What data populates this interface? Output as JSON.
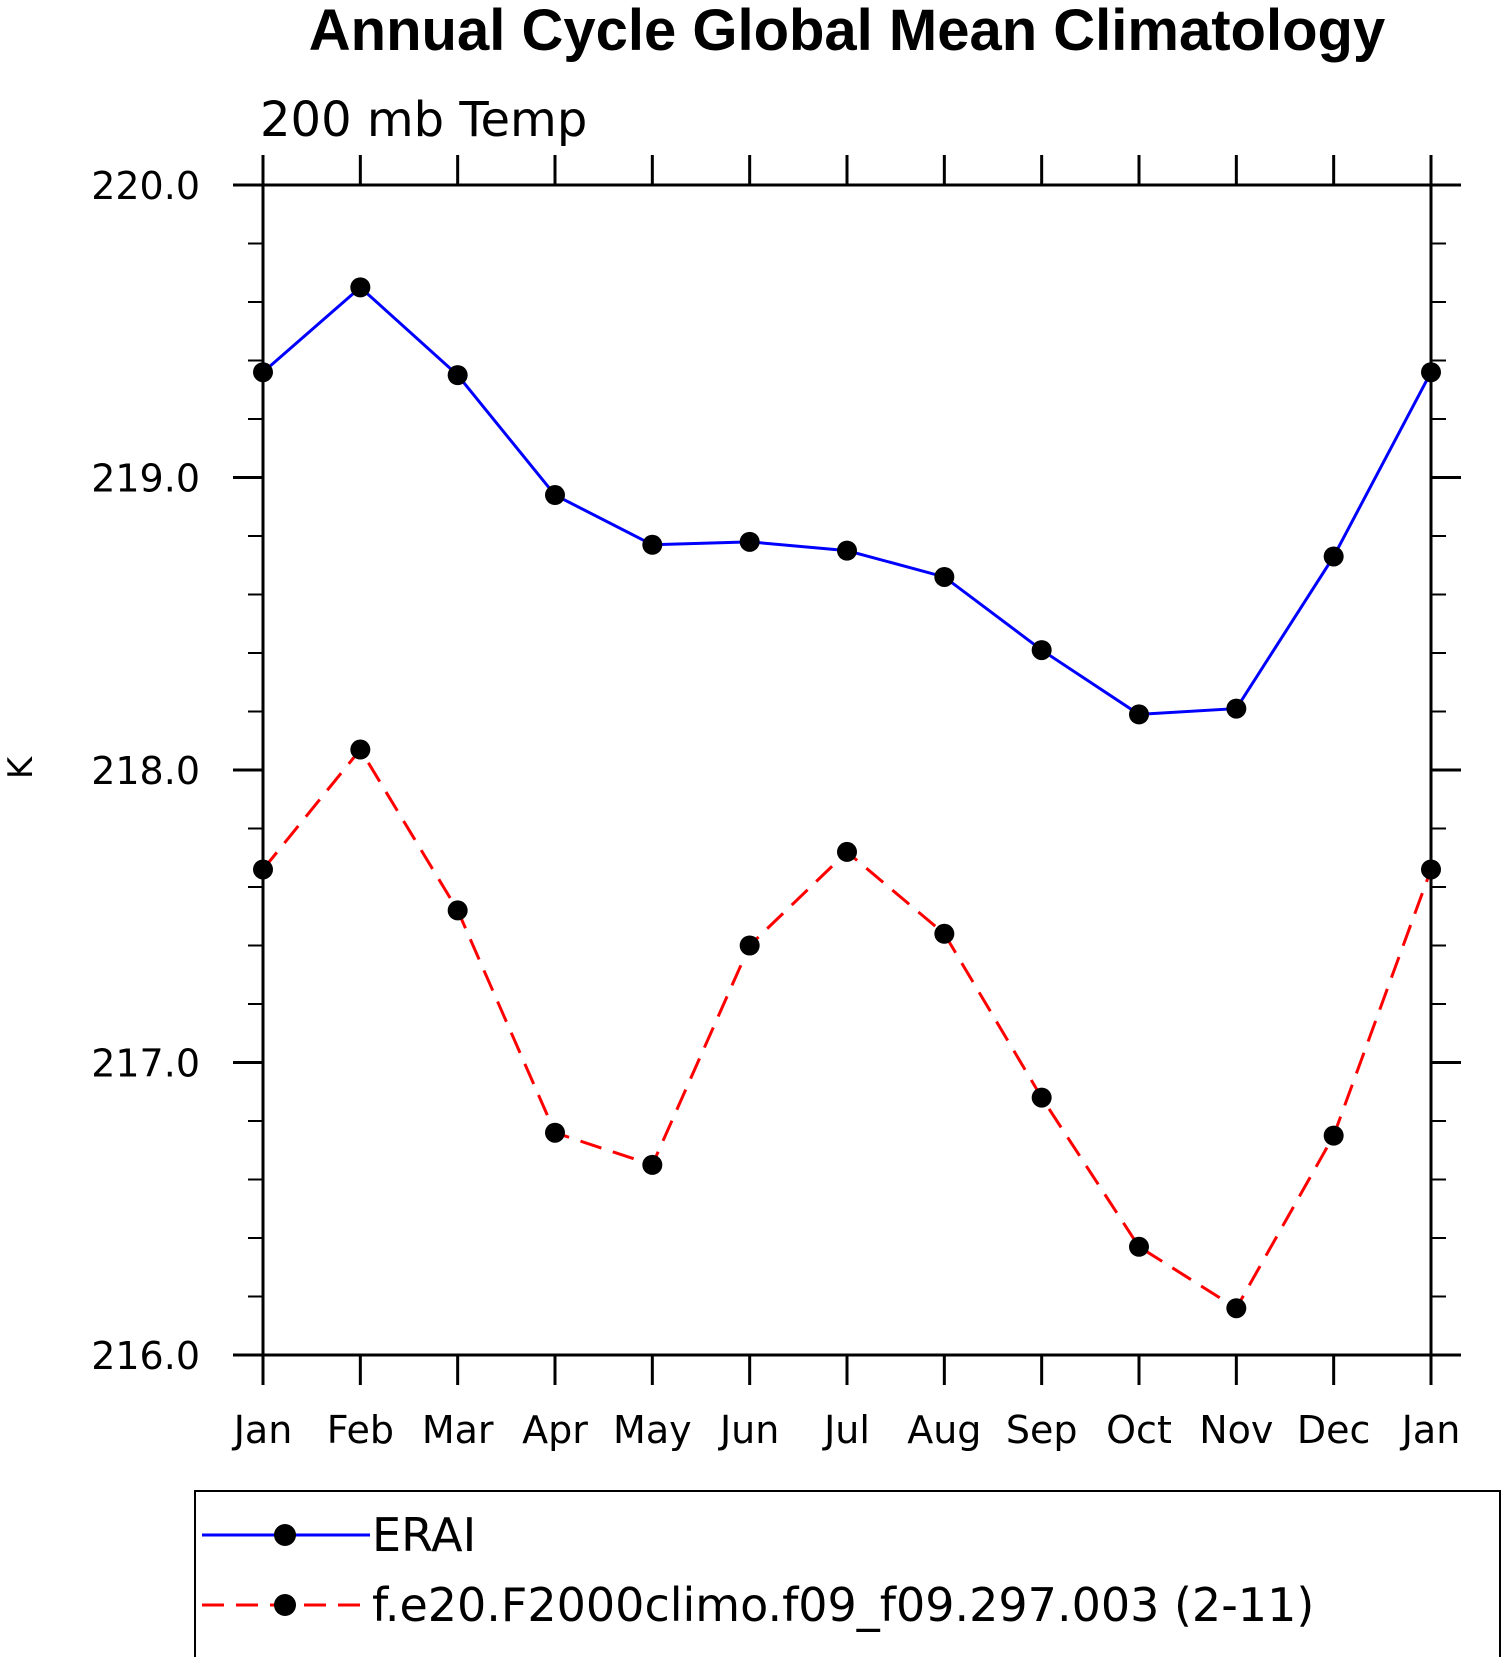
{
  "chart_data": {
    "type": "line",
    "title": "Annual Cycle Global Mean Climatology",
    "subtitle": "200 mb Temp",
    "xlabel": "",
    "ylabel": "K",
    "categories": [
      "Jan",
      "Feb",
      "Mar",
      "Apr",
      "May",
      "Jun",
      "Jul",
      "Aug",
      "Sep",
      "Oct",
      "Nov",
      "Dec",
      "Jan"
    ],
    "ylim": [
      216.0,
      220.0
    ],
    "yticks": [
      "216.0",
      "217.0",
      "218.0",
      "219.0",
      "220.0"
    ],
    "grid": false,
    "legend_position": "bottom",
    "series": [
      {
        "name": "ERAI",
        "color": "#0000ff",
        "dash": "solid",
        "marker": "filled-circle",
        "values": [
          219.36,
          219.65,
          219.35,
          218.94,
          218.77,
          218.78,
          218.75,
          218.66,
          218.41,
          218.19,
          218.21,
          218.73,
          219.36
        ]
      },
      {
        "name": "f.e20.F2000climo.f09_f09.297.003 (2-11)",
        "color": "#ff0000",
        "dash": "dashed",
        "marker": "filled-circle",
        "values": [
          217.66,
          218.07,
          217.52,
          216.76,
          216.65,
          217.4,
          217.72,
          217.44,
          216.88,
          216.37,
          216.16,
          216.75,
          217.66
        ]
      }
    ]
  }
}
